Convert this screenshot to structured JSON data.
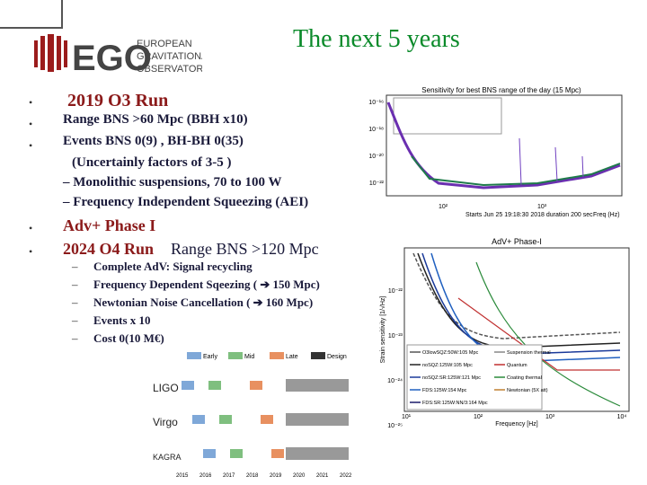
{
  "header": {
    "title": "The next 5 years",
    "logo": {
      "mark": "EGO",
      "name_lines": [
        "EUROPEAN",
        "GRAVITATIONAL",
        "OBSERVATORY"
      ]
    }
  },
  "bullets": [
    {
      "text": "2019  O3 Run"
    },
    {
      "text": "Range BNS  >60  Mpc (BBH x10)"
    },
    {
      "text": "Events BNS 0(9) , BH-BH 0(35)"
    },
    {
      "text": "(Uncertainly factors of 3-5 )"
    },
    {
      "text": "– Monolithic suspensions, 70 to 100 W"
    },
    {
      "text": "– Frequency Independent Squeezing (AEI)"
    },
    {
      "text": "Adv+  Phase I"
    },
    {
      "text": "2024 O4 Run",
      "extra": "Range BNS >120 Mpc"
    }
  ],
  "sub_bullets": [
    "Complete AdV:  Signal recycling",
    "Frequency Dependent Sqeezing ( ➔ 150 Mpc)",
    "Newtonian Noise Cancellation   ( ➔ 160 Mpc)",
    "Events x 10",
    "Cost 0(10 M€)"
  ],
  "figures": {
    "sensitivity": {
      "title": "Sensitivity for best BNS range of the day (15 Mpc)",
      "y_ticks": [
        "10⁻¹⁶",
        "10⁻¹⁸",
        "10⁻²⁰",
        "10⁻²²"
      ],
      "x_ticks": [
        "10²",
        "10³"
      ],
      "footer": "Starts Jun 25 19:18:30 2018 duration 200 sec",
      "x_label": "Freq (Hz)"
    },
    "adv_plus": {
      "title": "AdV+ Phase-I",
      "y_label": "Strain sensitivity [1/√Hz]",
      "x_label": "Frequency [Hz]",
      "y_ticks": [
        "10⁻²²",
        "10⁻²³",
        "10⁻²⁴",
        "10⁻²⁵"
      ],
      "x_ticks": [
        "10¹",
        "10²",
        "10³",
        "10⁴"
      ],
      "legend": [
        "O3lowSQZ:50W:105 Mpc",
        "noSQZ:125W:105 Mpc",
        "noSQZ:SR:125W:121 Mpc",
        "FDS:125W:154 Mpc",
        "FDS:SR:125W:NN/3:164 Mpc",
        "Suspension thermal",
        "Quantum",
        "Coating thermal",
        "Newtonian (5X att)"
      ]
    },
    "timeline": {
      "phases": [
        "Early",
        "Mid",
        "Late",
        "Design"
      ],
      "detectors": [
        "LIGO",
        "Virgo",
        "KAGRA"
      ],
      "years": [
        "2015",
        "2016",
        "2017",
        "2018",
        "2019",
        "2020",
        "2021",
        "2022"
      ]
    }
  }
}
